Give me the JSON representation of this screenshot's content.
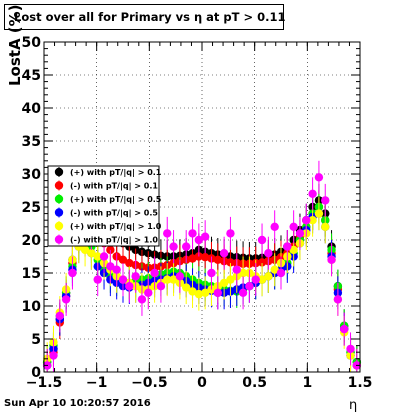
{
  "chart_data": {
    "type": "scatter",
    "title": "Lost over all for Primary vs   η at pT > 0.11",
    "xlabel": "η",
    "ylabel": "LostA (%)",
    "xlim": [
      -1.5,
      1.5
    ],
    "ylim": [
      0,
      50
    ],
    "x_ticks": [
      "−1.5",
      "−1",
      "−0.5",
      "0",
      "0.5",
      "1",
      "1.5"
    ],
    "y_ticks": [
      "0",
      "5",
      "10",
      "15",
      "20",
      "25",
      "30",
      "35",
      "40",
      "45",
      "50"
    ],
    "grid": true,
    "legend_position": "left-middle",
    "series": [
      {
        "name": "(+) with pT/|q| > 0.1",
        "color": "#000000",
        "x": [
          -1.47,
          -1.41,
          -1.35,
          -1.29,
          -1.23,
          -1.17,
          -1.11,
          -1.05,
          -0.99,
          -0.93,
          -0.87,
          -0.81,
          -0.75,
          -0.69,
          -0.63,
          -0.57,
          -0.51,
          -0.45,
          -0.39,
          -0.33,
          -0.27,
          -0.21,
          -0.15,
          -0.09,
          -0.03,
          0.03,
          0.09,
          0.15,
          0.21,
          0.27,
          0.33,
          0.39,
          0.45,
          0.51,
          0.57,
          0.63,
          0.69,
          0.75,
          0.81,
          0.87,
          0.93,
          0.99,
          1.05,
          1.11,
          1.17,
          1.23,
          1.29,
          1.35,
          1.41,
          1.47
        ],
        "y": [
          1.5,
          3.5,
          8,
          12,
          17,
          21,
          23,
          22,
          21.5,
          21,
          20.5,
          20,
          19.5,
          19,
          18.5,
          18.2,
          18,
          17.8,
          17.6,
          17.5,
          17.5,
          17.6,
          17.8,
          18,
          18.5,
          18.2,
          18,
          17.8,
          17.6,
          17.5,
          17.4,
          17.3,
          17.2,
          17.2,
          17.3,
          17.5,
          17.8,
          18.2,
          19,
          20,
          21.5,
          23,
          25,
          26,
          24,
          19,
          13,
          7,
          3,
          1.5
        ]
      },
      {
        "name": "(-) with pT/|q| > 0.1",
        "color": "#ff0000",
        "x": [
          -1.47,
          -1.41,
          -1.35,
          -1.29,
          -1.23,
          -1.17,
          -1.11,
          -1.05,
          -0.99,
          -0.93,
          -0.87,
          -0.81,
          -0.75,
          -0.69,
          -0.63,
          -0.57,
          -0.51,
          -0.45,
          -0.39,
          -0.33,
          -0.27,
          -0.21,
          -0.15,
          -0.09,
          -0.03,
          0.03,
          0.09,
          0.15,
          0.21,
          0.27,
          0.33,
          0.39,
          0.45,
          0.51,
          0.57,
          0.63,
          0.69,
          0.75,
          0.81,
          0.87,
          0.93,
          0.99,
          1.05,
          1.11,
          1.17,
          1.23,
          1.29,
          1.35,
          1.41,
          1.47
        ],
        "y": [
          1,
          3,
          7.5,
          11.5,
          16.5,
          20.5,
          22.5,
          21.5,
          20.5,
          19.5,
          18.5,
          17.5,
          17,
          16.5,
          16.2,
          16,
          15.8,
          15.8,
          16,
          16.2,
          16.5,
          16.8,
          17,
          17.2,
          17.5,
          17.4,
          17.2,
          17,
          16.8,
          16.6,
          16.5,
          16.4,
          16.4,
          16.5,
          16.6,
          16.8,
          17,
          17.4,
          18,
          19,
          20.5,
          22,
          24,
          25,
          23,
          18,
          12.5,
          6.5,
          2.5,
          1
        ]
      },
      {
        "name": "(+) with pT/|q| > 0.5",
        "color": "#00ee00",
        "x": [
          -1.47,
          -1.41,
          -1.35,
          -1.29,
          -1.23,
          -1.17,
          -1.11,
          -1.05,
          -0.99,
          -0.93,
          -0.87,
          -0.81,
          -0.75,
          -0.69,
          -0.63,
          -0.57,
          -0.51,
          -0.45,
          -0.39,
          -0.33,
          -0.27,
          -0.21,
          -0.15,
          -0.09,
          -0.03,
          0.03,
          0.09,
          0.15,
          0.21,
          0.27,
          0.33,
          0.39,
          0.45,
          0.51,
          0.57,
          0.63,
          0.69,
          0.75,
          0.81,
          0.87,
          0.93,
          0.99,
          1.05,
          1.11,
          1.17,
          1.23,
          1.29,
          1.35,
          1.41,
          1.47
        ],
        "y": [
          1.5,
          4,
          8.5,
          12,
          16,
          19.5,
          21,
          19,
          17,
          15.5,
          14.5,
          14,
          13.5,
          13.5,
          13.8,
          14,
          14.2,
          14.5,
          14.8,
          15,
          15.2,
          15,
          14.5,
          14,
          13.5,
          13.2,
          13,
          12.8,
          12.5,
          12.3,
          12.2,
          12.5,
          13,
          13.5,
          14,
          14.5,
          15,
          15.5,
          16.5,
          18,
          20,
          22,
          24,
          25,
          23,
          18.5,
          13,
          7,
          3,
          1.5
        ]
      },
      {
        "name": "(-) with pT/|q| > 0.5",
        "color": "#0000ff",
        "x": [
          -1.47,
          -1.41,
          -1.35,
          -1.29,
          -1.23,
          -1.17,
          -1.11,
          -1.05,
          -0.99,
          -0.93,
          -0.87,
          -0.81,
          -0.75,
          -0.69,
          -0.63,
          -0.57,
          -0.51,
          -0.45,
          -0.39,
          -0.33,
          -0.27,
          -0.21,
          -0.15,
          -0.09,
          -0.03,
          0.03,
          0.09,
          0.15,
          0.21,
          0.27,
          0.33,
          0.39,
          0.45,
          0.51,
          0.57,
          0.63,
          0.69,
          0.75,
          0.81,
          0.87,
          0.93,
          0.99,
          1.05,
          1.11,
          1.17,
          1.23,
          1.29,
          1.35,
          1.41,
          1.47
        ],
        "y": [
          1,
          3.5,
          8,
          11.5,
          15.5,
          19,
          20,
          18,
          16,
          15,
          14,
          13.5,
          13,
          12.8,
          13,
          13.2,
          13.5,
          13.8,
          14,
          14.2,
          14.5,
          14.2,
          13.8,
          13.2,
          12.8,
          12.5,
          12.3,
          12,
          12,
          12.2,
          12.5,
          12.8,
          13,
          13.5,
          14,
          14.5,
          15,
          15.5,
          16,
          17.5,
          19.5,
          21.5,
          23.5,
          24,
          22,
          17.5,
          12,
          6.5,
          2.5,
          1
        ]
      },
      {
        "name": "(+) with pT/|q| > 1.0",
        "color": "#ffff00",
        "x": [
          -1.47,
          -1.41,
          -1.35,
          -1.29,
          -1.23,
          -1.17,
          -1.11,
          -1.05,
          -0.99,
          -0.93,
          -0.87,
          -0.81,
          -0.75,
          -0.69,
          -0.63,
          -0.57,
          -0.51,
          -0.45,
          -0.39,
          -0.33,
          -0.27,
          -0.21,
          -0.15,
          -0.09,
          -0.03,
          0.03,
          0.09,
          0.15,
          0.21,
          0.27,
          0.33,
          0.39,
          0.45,
          0.51,
          0.57,
          0.63,
          0.69,
          0.75,
          0.81,
          0.87,
          0.93,
          0.99,
          1.05,
          1.11,
          1.17,
          1.23,
          1.29,
          1.35,
          1.41,
          1.47
        ],
        "y": [
          2,
          4.5,
          9,
          12.5,
          17,
          19,
          18.5,
          18,
          17.5,
          16.5,
          15.5,
          14.5,
          14,
          13.5,
          13,
          12.5,
          12.5,
          13,
          13.5,
          14,
          14,
          13.5,
          12.8,
          12.2,
          11.8,
          12,
          12.5,
          13,
          13.5,
          14,
          14.5,
          15,
          15,
          14.5,
          14,
          14.5,
          15.5,
          16.5,
          17.5,
          18.5,
          19.5,
          21,
          23,
          24,
          22,
          17,
          11,
          6,
          2.5,
          1
        ]
      },
      {
        "name": "(-) with pT/|q| > 1.0",
        "color": "#ff00ff",
        "x": [
          -1.47,
          -1.41,
          -1.35,
          -1.29,
          -1.23,
          -1.17,
          -1.11,
          -1.05,
          -0.99,
          -0.93,
          -0.87,
          -0.81,
          -0.75,
          -0.69,
          -0.63,
          -0.57,
          -0.51,
          -0.45,
          -0.39,
          -0.33,
          -0.27,
          -0.21,
          -0.15,
          -0.09,
          -0.03,
          0.03,
          0.09,
          0.15,
          0.21,
          0.27,
          0.33,
          0.39,
          0.45,
          0.51,
          0.57,
          0.63,
          0.69,
          0.75,
          0.81,
          0.87,
          0.93,
          0.99,
          1.05,
          1.11,
          1.17,
          1.23,
          1.29,
          1.35,
          1.41,
          1.47
        ],
        "y": [
          1,
          2.5,
          8.5,
          11,
          15,
          22.5,
          26,
          21,
          14,
          17.5,
          16,
          15.5,
          14,
          13,
          14.5,
          11,
          12,
          15,
          13,
          21,
          19,
          14.5,
          19,
          21,
          20,
          20.5,
          15,
          12,
          18,
          21,
          15.5,
          12,
          13,
          14,
          20,
          18,
          22,
          15,
          19,
          22,
          21,
          23,
          27,
          29.5,
          26,
          17,
          11,
          6.5,
          3.5,
          1
        ]
      }
    ],
    "error_bar": 2.5
  },
  "footer": {
    "timestamp": "Sun Apr 10 10:20:57 2016"
  }
}
